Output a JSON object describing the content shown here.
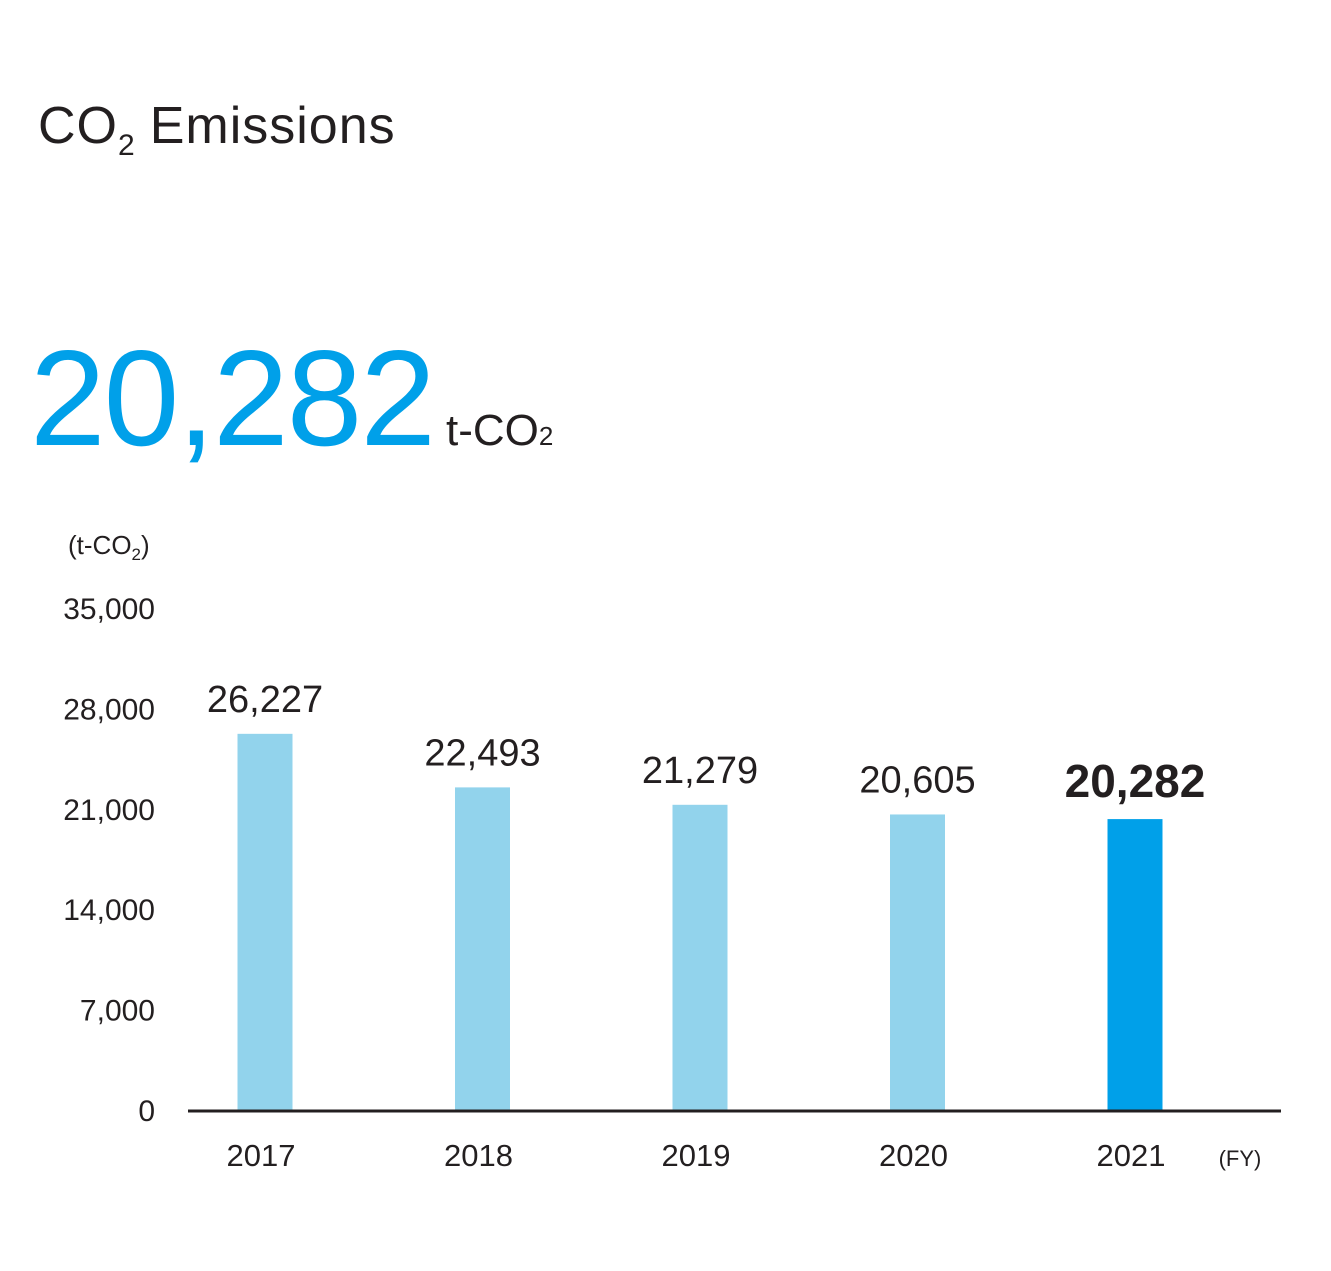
{
  "title": {
    "main": "CO",
    "sub": "2",
    "rest": "Emissions"
  },
  "headline": {
    "value": "20,282",
    "unit_main": "t-CO",
    "unit_sub": "2"
  },
  "colors": {
    "accent": "#00a0e9",
    "bar": "#92d3ec",
    "text": "#231f20"
  },
  "chart_data": {
    "type": "bar",
    "categories": [
      "2017",
      "2018",
      "2019",
      "2020",
      "2021"
    ],
    "values": [
      26227,
      22493,
      21279,
      20605,
      20282
    ],
    "value_labels": [
      "26,227",
      "22,493",
      "21,279",
      "20,605",
      "20,282"
    ],
    "highlight_index": 4,
    "ylim": [
      0,
      35000
    ],
    "yticks": [
      0,
      7000,
      14000,
      21000,
      28000,
      35000
    ],
    "ytick_labels": [
      "0",
      "7,000",
      "14,000",
      "21,000",
      "28,000",
      "35,000"
    ],
    "ylabel": {
      "main": "(t-CO",
      "sub": "2",
      "close": ")"
    },
    "xlabel": "(FY)",
    "grid": false
  }
}
